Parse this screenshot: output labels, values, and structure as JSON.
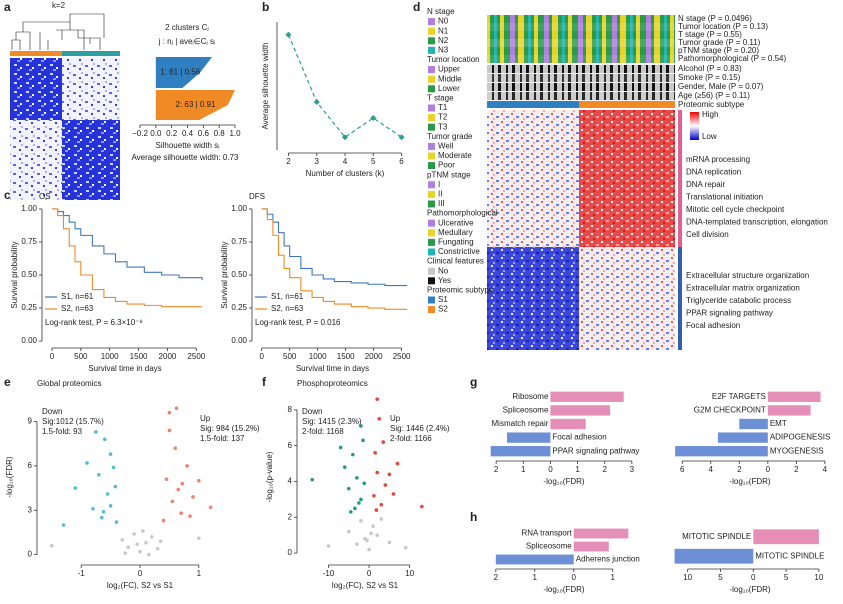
{
  "figure": {
    "panels": [
      "a",
      "b",
      "c",
      "d",
      "e",
      "f",
      "g",
      "h"
    ],
    "k_label": "k=2",
    "d": {
      "legend_groups": [
        {
          "title": "N stage",
          "items": [
            "N0",
            "N1",
            "N2",
            "N3"
          ],
          "colors": [
            "#b07fe0",
            "#e6d42a",
            "#2a9a4a",
            "#22b3b3"
          ]
        },
        {
          "title": "Tumor location",
          "items": [
            "Upper",
            "Middle",
            "Lower"
          ],
          "colors": [
            "#b07fe0",
            "#e6d42a",
            "#2a9a4a"
          ]
        },
        {
          "title": "T stage",
          "items": [
            "T1",
            "T2",
            "T3"
          ],
          "colors": [
            "#b07fe0",
            "#e6d42a",
            "#2a9a4a"
          ]
        },
        {
          "title": "Tumor grade",
          "items": [
            "Well",
            "Moderate",
            "Poor"
          ],
          "colors": [
            "#b07fe0",
            "#e6d42a",
            "#2a9a4a"
          ]
        },
        {
          "title": "pTNM stage",
          "items": [
            "I",
            "II",
            "III"
          ],
          "colors": [
            "#b07fe0",
            "#e6d42a",
            "#2a9a4a"
          ]
        },
        {
          "title": "Pathomorphological",
          "items": [
            "Ulcerative",
            "Medullary",
            "Fungating",
            "Constrictive"
          ],
          "colors": [
            "#b07fe0",
            "#e6d42a",
            "#2a9a4a",
            "#22b3b3"
          ]
        },
        {
          "title": "Clinical features",
          "items": [
            "No",
            "Yes"
          ],
          "colors": [
            "#c8c8c8",
            "#111111"
          ]
        },
        {
          "title": "Proteomic subtype",
          "items": [
            "S1",
            "S2"
          ],
          "colors": [
            "#2f7fc1",
            "#f08a24"
          ]
        }
      ],
      "tracks": [
        "N stage (P = 0.0496)",
        "Tumor location (P = 0.13)",
        "T stage (P = 0.55)",
        "Tumor grade (P = 0.11)",
        "pTNM stage (P = 0.20)",
        "Pathomorphological (P = 0.54)",
        "Alcohol (P = 0.83)",
        "Smoke (P = 0.15)",
        "Gender, Male (P = 0.07)",
        "Age (≥56) (P = 0.11)",
        "Proteomic subtype"
      ],
      "scale": [
        "High",
        "Low"
      ],
      "up_pathways": [
        "mRNA processing",
        "DNA replication",
        "DNA repair",
        "Translational initiation",
        "Mitotic cell cycle checkpoint",
        "DNA-templated transcription, elongation",
        "Cell division"
      ],
      "down_pathways": [
        "Extracellular structure organization",
        "Extracellular matrix organization",
        "Triglyceride catabolic process",
        "PPAR signaling pathway",
        "Focal adhesion"
      ]
    }
  },
  "chart_data": [
    {
      "type": "silhouette",
      "title": "2 clusters Cⱼ",
      "subtitle": "j : nⱼ | aveᵢ∈Cⱼ sᵢ",
      "values": [
        0.56,
        0.91
      ],
      "value_labels": [
        "1: 61 | 0.56",
        "2: 63 | 0.91"
      ],
      "colors": [
        "#2f7fc1",
        "#f08a24"
      ],
      "xlim": [
        -0.2,
        1.0
      ],
      "xticks": [
        {
          "value": -0.2,
          "label": "−0.2"
        },
        {
          "value": 0,
          "label": "0.0"
        },
        0.2,
        0.4,
        0.6,
        0.8,
        {
          "value": 1.0,
          "label": "1.0"
        }
      ],
      "xlabel": "Silhouette width sᵢ",
      "annotation": "Average silhouette width: 0.73"
    },
    {
      "type": "line",
      "x": [
        2,
        3,
        4,
        5,
        6
      ],
      "values": [
        0.73,
        0.625,
        0.57,
        0.6,
        0.57
      ],
      "color": "#2a9d8f",
      "xlim": [
        1.7,
        6.3
      ],
      "ylim": [
        0.55,
        0.75
      ],
      "xticks": [
        2,
        3,
        4,
        5,
        6
      ],
      "xlabel": "Number of clusters (k)",
      "ylabel": "Average silhouette width"
    },
    {
      "type": "km",
      "title": "OS",
      "xlim": [
        -120,
        2650
      ],
      "ylim": [
        -0.03,
        1.03
      ],
      "xticks": [
        0,
        500,
        1000,
        1500,
        2000,
        2500
      ],
      "yticks": [
        {
          "value": 0,
          "label": "0.00"
        },
        {
          "value": 0.25,
          "label": "0.25"
        },
        {
          "value": 0.5,
          "label": "0.50"
        },
        {
          "value": 0.75,
          "label": "0.75"
        },
        {
          "value": 1,
          "label": "1.00"
        }
      ],
      "xlabel": "Survival time in days",
      "ylabel": "Survival probability",
      "annotation": "Log-rank test, P = 6.3×10⁻⁸",
      "series": [
        {
          "name": "S1, n=61",
          "color": "#3f78b8",
          "x": [
            0,
            100,
            200,
            300,
            400,
            500,
            700,
            900,
            1100,
            1300,
            1600,
            1900,
            2200,
            2600
          ],
          "values": [
            1,
            0.98,
            0.95,
            0.9,
            0.85,
            0.8,
            0.72,
            0.66,
            0.6,
            0.56,
            0.52,
            0.5,
            0.48,
            0.46
          ]
        },
        {
          "name": "S2, n=63",
          "color": "#f08a24",
          "x": [
            0,
            100,
            200,
            300,
            400,
            500,
            700,
            900,
            1100,
            1300,
            1600,
            1900,
            2200,
            2600
          ],
          "values": [
            1,
            0.95,
            0.85,
            0.72,
            0.6,
            0.5,
            0.39,
            0.33,
            0.3,
            0.28,
            0.27,
            0.26,
            0.26,
            0.26
          ]
        }
      ]
    },
    {
      "type": "km",
      "title": "DFS",
      "xlim": [
        -120,
        2650
      ],
      "ylim": [
        -0.03,
        1.03
      ],
      "xticks": [
        0,
        500,
        1000,
        1500,
        2000,
        2500
      ],
      "yticks": [
        {
          "value": 0,
          "label": "0.00"
        },
        {
          "value": 0.25,
          "label": "0.25"
        },
        {
          "value": 0.5,
          "label": "0.50"
        },
        {
          "value": 0.75,
          "label": "0.75"
        },
        {
          "value": 1,
          "label": "1.00"
        }
      ],
      "xlabel": "Survival time in days",
      "ylabel": "Survival probability",
      "annotation": "Log-rank test, P = 0.016",
      "series": [
        {
          "name": "S1, n=61",
          "color": "#3f78b8",
          "x": [
            0,
            100,
            200,
            300,
            400,
            500,
            700,
            900,
            1100,
            1300,
            1600,
            1900,
            2200,
            2600
          ],
          "values": [
            1,
            0.96,
            0.9,
            0.82,
            0.72,
            0.64,
            0.55,
            0.5,
            0.47,
            0.45,
            0.44,
            0.43,
            0.42,
            0.42
          ]
        },
        {
          "name": "S2, n=63",
          "color": "#f08a24",
          "x": [
            0,
            100,
            200,
            300,
            400,
            500,
            700,
            900,
            1100,
            1300,
            1600,
            1900,
            2200,
            2600
          ],
          "values": [
            1,
            0.92,
            0.8,
            0.65,
            0.55,
            0.48,
            0.38,
            0.33,
            0.3,
            0.28,
            0.26,
            0.25,
            0.24,
            0.24
          ]
        }
      ]
    },
    {
      "type": "scatter",
      "title": "Global proteomics",
      "xlim": [
        -1.7,
        1.7
      ],
      "ylim": [
        -0.5,
        11
      ],
      "xticks": [
        -1,
        0,
        1
      ],
      "yticks": [
        0,
        3,
        6,
        9
      ],
      "xlabel": "log₂(FC), S2 vs S1",
      "ylabel": "-log₁₀(FDR)",
      "annotations": [
        "Down",
        "Sig:1012 (15.7%)",
        "1.5-fold: 93",
        "Up",
        "Sig: 984 (15.2%)",
        "1.5-fold: 137"
      ],
      "series": [
        {
          "name": "Down",
          "color": "#56bcd6",
          "x": [
            -1.1,
            -0.9,
            -0.8,
            -0.7,
            -0.65,
            -0.6,
            -0.55,
            -0.5,
            -0.45,
            -0.4,
            -0.75,
            -0.62,
            -0.5,
            -0.42,
            -1.3
          ],
          "values": [
            4.5,
            6.2,
            3.1,
            5.4,
            2.5,
            7.8,
            4.1,
            3.3,
            5.9,
            2.2,
            8.3,
            2.9,
            6.8,
            4.6,
            2.0
          ]
        },
        {
          "name": "Up",
          "color": "#f0826c",
          "x": [
            0.4,
            0.45,
            0.5,
            0.55,
            0.6,
            0.65,
            0.7,
            0.8,
            0.9,
            1.0,
            0.5,
            0.62,
            0.72,
            0.85,
            1.2
          ],
          "values": [
            2.3,
            5.1,
            9.6,
            3.6,
            7.2,
            4.4,
            2.8,
            6.0,
            3.9,
            5.0,
            8.4,
            9.9,
            4.8,
            2.6,
            3.2
          ]
        },
        {
          "color": "#c8c8c8",
          "x": [
            -0.3,
            -0.2,
            -0.1,
            0,
            0.1,
            0.2,
            0.3,
            -0.25,
            0.15,
            0.05,
            -0.05,
            0.35,
            -1.5,
            1.0
          ],
          "values": [
            1.0,
            0.5,
            1.4,
            0.2,
            0.8,
            1.2,
            0.4,
            0.1,
            0.0,
            1.6,
            0.7,
            0.9,
            0.6,
            1.1
          ]
        }
      ]
    },
    {
      "type": "scatter",
      "title": "Phosphoproteomics",
      "xlim": [
        -17,
        15
      ],
      "ylim": [
        -0.5,
        9
      ],
      "xticks": [
        -10,
        0,
        10
      ],
      "yticks": [
        0,
        2,
        4,
        6,
        8
      ],
      "xlabel": "log₂(FC), S2 vs S1",
      "ylabel": "-log₁₀(p-value)",
      "annotations": [
        "Down",
        "Sig: 1415 (2.3%)",
        "2-fold: 1168",
        "Up",
        "Sig: 1446 (2.4%)",
        "2-fold: 1166"
      ],
      "series": [
        {
          "name": "Down",
          "color": "#1f9e7e",
          "x": [
            -2,
            -3,
            -4,
            -2.5,
            -1.5,
            -5,
            -6,
            -3.5,
            -2,
            -1.2,
            -7,
            -4.5,
            -14
          ],
          "values": [
            3.0,
            4.2,
            5.5,
            2.8,
            6.3,
            3.6,
            4.8,
            2.5,
            7.1,
            3.9,
            5.9,
            2.3,
            4.1
          ]
        },
        {
          "name": "Up",
          "color": "#e0483a",
          "x": [
            1.2,
            2,
            2.5,
            3,
            1.5,
            4,
            5,
            3.5,
            2,
            6,
            1.8,
            7,
            13
          ],
          "values": [
            3.2,
            4.5,
            7.5,
            2.7,
            5.6,
            3.8,
            4.4,
            6.2,
            8.6,
            3.3,
            2.4,
            5.0,
            2.6
          ]
        },
        {
          "color": "#c8c8c8",
          "x": [
            -10,
            -5,
            -2,
            -1,
            0,
            1,
            2,
            5,
            9,
            -3,
            3,
            0.5,
            -0.5
          ],
          "values": [
            0.4,
            1.2,
            1.8,
            0.8,
            0.2,
            1.5,
            1.0,
            0.6,
            0.3,
            0.5,
            1.9,
            1.1,
            0.7
          ]
        }
      ]
    },
    {
      "type": "hbar",
      "categories": [
        "Ribosome",
        "Spliceosome",
        "Mismatch repair",
        "Focal adhesion",
        "PPAR signaling pathway"
      ],
      "values": [
        2.7,
        2.2,
        1.3,
        -1.6,
        -2.2
      ],
      "colors": [
        "#e58fb8",
        "#e58fb8",
        "#e58fb8",
        "#6d8fd6",
        "#6d8fd6"
      ],
      "xlim": [
        -2.3,
        3.3
      ],
      "xticks": [
        {
          "value": -2,
          "label": "2"
        },
        {
          "value": -1,
          "label": "1"
        },
        0,
        1,
        2,
        3
      ],
      "xlabel": "-log₁₀(FDR)"
    },
    {
      "type": "hbar",
      "categories": [
        "E2F TARGETS",
        "G2M CHECKPOINT",
        "EMT",
        "ADIPOGENESIS",
        "MYOGENESIS"
      ],
      "values": [
        3.7,
        3.0,
        -2.0,
        -3.5,
        -6.5
      ],
      "colors": [
        "#e58fb8",
        "#e58fb8",
        "#6d8fd6",
        "#6d8fd6",
        "#6d8fd6"
      ],
      "xlim": [
        -7,
        4.5
      ],
      "xticks": [
        {
          "value": -6,
          "label": "6"
        },
        {
          "value": -4,
          "label": "4"
        },
        {
          "value": -2,
          "label": "2"
        },
        0,
        2,
        4
      ],
      "xlabel": "-log₁₀(FDR)"
    },
    {
      "type": "hbar",
      "categories": [
        "RNA transport",
        "Spliceosome",
        "Adherens junction"
      ],
      "values": [
        1.4,
        0.9,
        -2.0
      ],
      "colors": [
        "#e58fb8",
        "#e58fb8",
        "#6d8fd6"
      ],
      "xlim": [
        -2.2,
        1.7
      ],
      "xticks": [
        {
          "value": -2,
          "label": "2"
        },
        {
          "value": -1,
          "label": "1"
        },
        0,
        1
      ],
      "xlabel": "-log₁₀(FDR)"
    },
    {
      "type": "hbar",
      "categories": [
        "MITOTIC SPINDLE",
        "MITOTIC SPINDLE"
      ],
      "values": [
        10,
        -12
      ],
      "colors": [
        "#e58fb8",
        "#6d8fd6"
      ],
      "xlim": [
        -13,
        12
      ],
      "xticks": [
        {
          "value": -10,
          "label": "10"
        },
        {
          "value": -5,
          "label": "5"
        },
        0,
        5,
        10
      ],
      "xlabel": "-log₁₀(FDR)"
    }
  ]
}
